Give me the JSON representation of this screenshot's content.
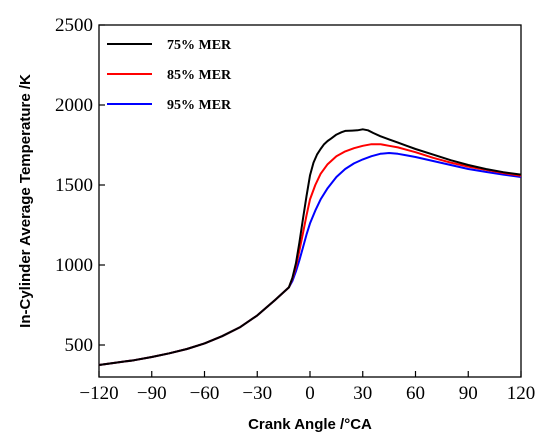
{
  "chart_data": {
    "type": "line",
    "xlabel": "Crank Angle /°CA",
    "ylabel": "In-Cylinder Average Temperature /K",
    "xlim": [
      -120,
      120
    ],
    "ylim": [
      300,
      2500
    ],
    "xticks": [
      -120,
      -90,
      -60,
      -30,
      0,
      30,
      60,
      90,
      120
    ],
    "xtick_labels": [
      "−120",
      "−90",
      "−60",
      "−30",
      "0",
      "30",
      "60",
      "90",
      "120"
    ],
    "yticks": [
      500,
      1000,
      1500,
      2000,
      2500
    ],
    "grid": false,
    "legend_position": "top-left",
    "series": [
      {
        "name": "75% MER",
        "color": "#000000",
        "x": [
          -120,
          -100,
          -90,
          -80,
          -70,
          -60,
          -50,
          -40,
          -30,
          -20,
          -12,
          -10,
          -8,
          -6,
          -4,
          -2,
          0,
          2,
          4,
          6,
          8,
          10,
          12,
          15,
          18,
          20,
          24,
          27,
          30,
          33,
          36,
          40,
          45,
          50,
          55,
          60,
          70,
          80,
          90,
          100,
          110,
          120
        ],
        "y": [
          375,
          405,
          425,
          448,
          475,
          510,
          555,
          610,
          685,
          780,
          860,
          920,
          1010,
          1140,
          1290,
          1430,
          1560,
          1640,
          1690,
          1725,
          1755,
          1775,
          1790,
          1815,
          1830,
          1838,
          1840,
          1842,
          1848,
          1842,
          1825,
          1805,
          1785,
          1765,
          1745,
          1725,
          1690,
          1655,
          1625,
          1600,
          1580,
          1565
        ]
      },
      {
        "name": "85% MER",
        "color": "#ff0000",
        "x": [
          -120,
          -100,
          -90,
          -80,
          -70,
          -60,
          -50,
          -40,
          -30,
          -20,
          -12,
          -10,
          -8,
          -6,
          -4,
          -2,
          0,
          3,
          6,
          10,
          15,
          20,
          25,
          30,
          35,
          40,
          45,
          50,
          55,
          60,
          70,
          80,
          90,
          100,
          110,
          120
        ],
        "y": [
          375,
          405,
          425,
          448,
          475,
          510,
          555,
          610,
          685,
          780,
          860,
          915,
          990,
          1090,
          1200,
          1310,
          1410,
          1500,
          1570,
          1630,
          1680,
          1710,
          1730,
          1745,
          1755,
          1755,
          1745,
          1735,
          1720,
          1705,
          1670,
          1640,
          1615,
          1595,
          1575,
          1558
        ]
      },
      {
        "name": "95% MER",
        "color": "#0000ff",
        "x": [
          -120,
          -100,
          -90,
          -80,
          -70,
          -60,
          -50,
          -40,
          -30,
          -20,
          -12,
          -10,
          -8,
          -6,
          -4,
          -2,
          0,
          3,
          6,
          10,
          15,
          20,
          25,
          30,
          35,
          40,
          45,
          50,
          55,
          60,
          70,
          80,
          90,
          100,
          110,
          120
        ],
        "y": [
          375,
          405,
          425,
          448,
          475,
          510,
          555,
          610,
          685,
          780,
          860,
          900,
          960,
          1030,
          1110,
          1190,
          1260,
          1340,
          1410,
          1480,
          1550,
          1600,
          1635,
          1660,
          1680,
          1695,
          1700,
          1695,
          1685,
          1675,
          1650,
          1625,
          1600,
          1582,
          1565,
          1550
        ]
      }
    ]
  }
}
